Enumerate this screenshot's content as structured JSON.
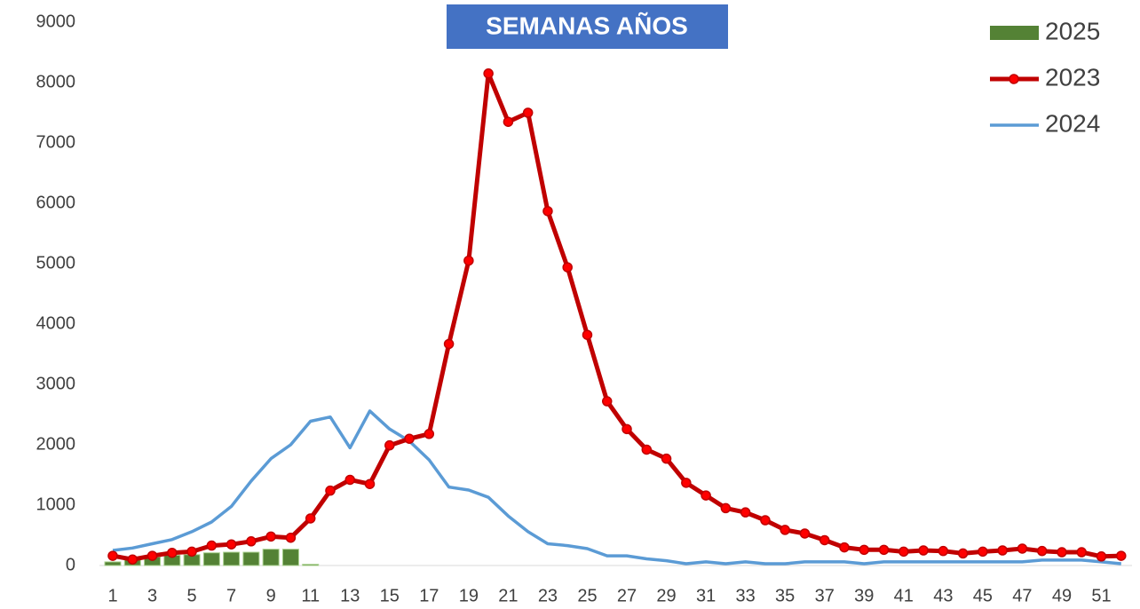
{
  "chart_data": {
    "type": "combo",
    "title": "SEMANAS AÑOS",
    "categories": [
      1,
      null,
      3,
      null,
      5,
      null,
      7,
      null,
      9,
      null,
      11,
      null,
      13,
      null,
      15,
      null,
      17,
      null,
      19,
      null,
      21,
      null,
      23,
      null,
      25,
      null,
      27,
      null,
      29,
      null,
      31,
      null,
      33,
      null,
      35,
      null,
      37,
      null,
      39,
      null,
      41,
      null,
      43,
      null,
      45,
      null,
      47,
      null,
      49,
      null,
      51,
      null
    ],
    "series": [
      {
        "name": "2025",
        "type": "bar",
        "color": "#548235",
        "values": [
          60,
          100,
          140,
          170,
          180,
          210,
          220,
          220,
          270,
          270,
          20,
          null,
          null,
          null,
          null,
          null,
          null,
          null,
          null,
          null,
          null,
          null,
          null,
          null,
          null,
          null,
          null,
          null,
          null,
          null,
          null,
          null,
          null,
          null,
          null,
          null,
          null,
          null,
          null,
          null,
          null,
          null,
          null,
          null,
          null,
          null,
          null,
          null,
          null,
          null,
          null,
          null
        ]
      },
      {
        "name": "2023",
        "type": "line",
        "color": "#c00000",
        "marker": true,
        "values": [
          160,
          100,
          160,
          210,
          230,
          330,
          350,
          400,
          480,
          460,
          780,
          1240,
          1420,
          1350,
          1990,
          2100,
          2180,
          3670,
          5050,
          8150,
          7350,
          7500,
          5870,
          4940,
          3820,
          2720,
          2260,
          1920,
          1770,
          1370,
          1160,
          950,
          880,
          750,
          590,
          530,
          420,
          300,
          260,
          260,
          230,
          250,
          240,
          200,
          230,
          250,
          280,
          240,
          220,
          220,
          150,
          160
        ]
      },
      {
        "name": "2024",
        "type": "line",
        "color": "#5b9bd5",
        "values": [
          250,
          290,
          360,
          430,
          560,
          720,
          980,
          1400,
          1770,
          2000,
          2390,
          2460,
          1950,
          2560,
          2260,
          2060,
          1750,
          1300,
          1250,
          1130,
          820,
          560,
          360,
          330,
          280,
          160,
          160,
          110,
          80,
          30,
          60,
          30,
          60,
          30,
          30,
          60,
          60,
          60,
          30,
          60,
          60,
          60,
          60,
          60,
          60,
          60,
          60,
          90,
          90,
          90,
          60,
          30
        ]
      }
    ],
    "ylim": [
      0,
      9000
    ],
    "yticks": [
      0,
      1000,
      2000,
      3000,
      4000,
      5000,
      6000,
      7000,
      8000,
      9000
    ],
    "grid": false
  }
}
